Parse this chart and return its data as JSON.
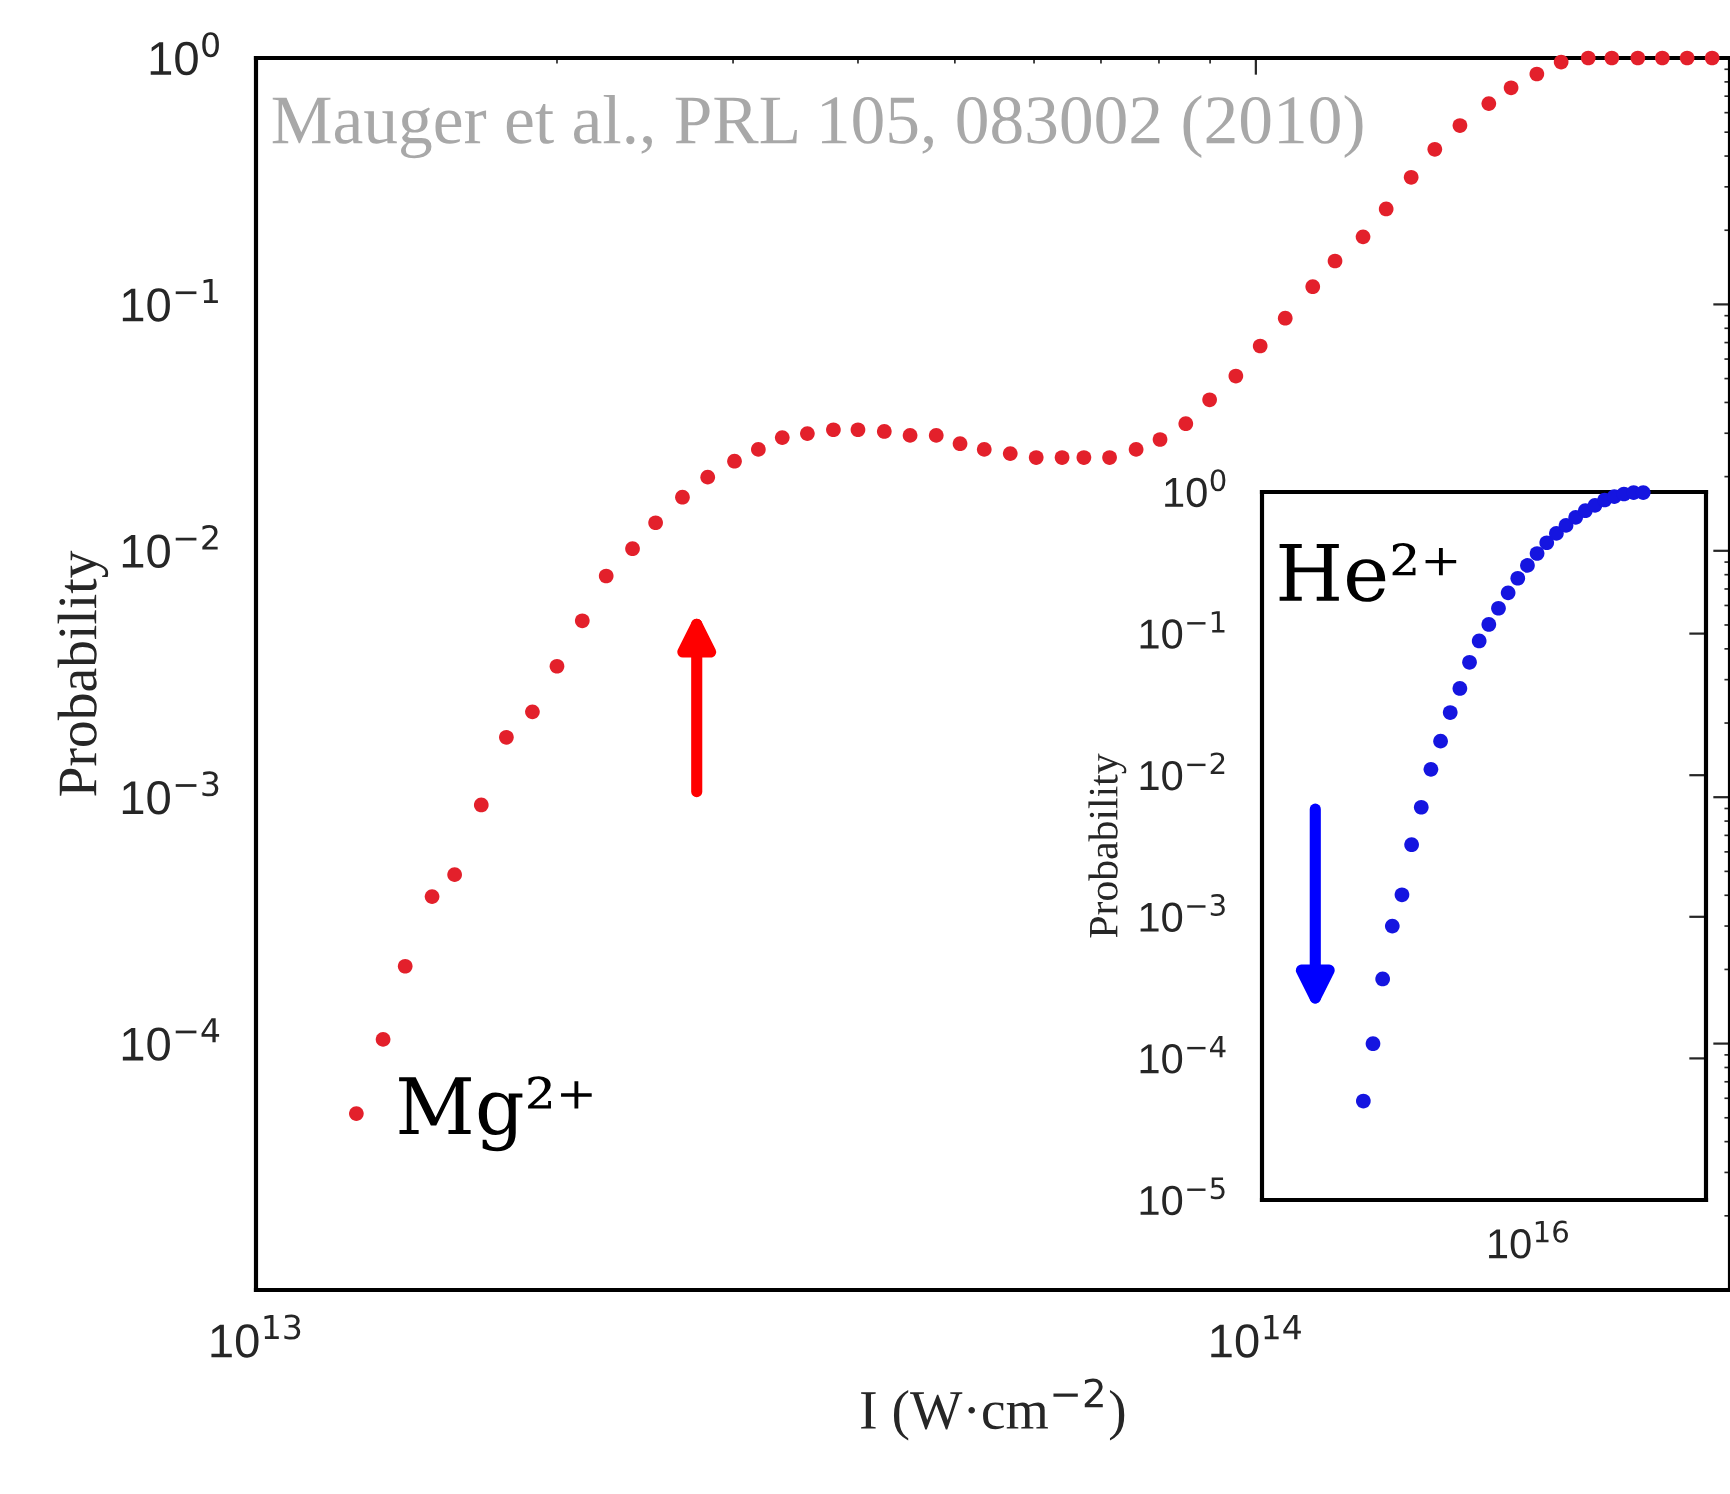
{
  "chart_data": [
    {
      "type": "scatter",
      "xlabel": "I (W·cm$^{−2}$)",
      "ylabel": "Probability",
      "log": "xy",
      "grid": false,
      "marker": "circle",
      "xlim": [
        10000000000000.0,
        298000000000000.0
      ],
      "ylim": [
        1e-05,
        1
      ],
      "xticks": [
        {
          "value": 10000000000000.0,
          "label": "10$^{13}$"
        },
        {
          "value": 100000000000000.0,
          "label": "10$^{14}$"
        }
      ],
      "yticks": [
        {
          "value": 0.0001,
          "label": "10$^{−4}$"
        },
        {
          "value": 0.001,
          "label": "10$^{−3}$"
        },
        {
          "value": 0.01,
          "label": "10$^{−2}$"
        },
        {
          "value": 0.1,
          "label": "10$^{−1}$"
        },
        {
          "value": 1,
          "label": "10$^{0}$"
        }
      ],
      "annotations": [
        "Mauger et al., PRL 105, 083002 (2010)"
      ],
      "series": [
        {
          "name": "Mg²⁺",
          "color": "#e3202b",
          "x": [
            12600000000000.0,
            13400000000000.0,
            14100000000000.0,
            15000000000000.0,
            15800000000000.0,
            16800000000000.0,
            17800000000000.0,
            18900000000000.0,
            20000000000000.0,
            21200000000000.0,
            22400000000000.0,
            23800000000000.0,
            25100000000000.0,
            26700000000000.0,
            28300000000000.0,
            30100000000000.0,
            31800000000000.0,
            33600000000000.0,
            35600000000000.0,
            37800000000000.0,
            40000000000000.0,
            42500000000000.0,
            45100000000000.0,
            47900000000000.0,
            50600000000000.0,
            53500000000000.0,
            56800000000000.0,
            60300000000000.0,
            64000000000000.0,
            67300000000000.0,
            71400000000000.0,
            75900000000000.0,
            80200000000000.0,
            85100000000000.0,
            89900000000000.0,
            95500000000000.0,
            101000000000000.0,
            107000000000000.0,
            114000000000000.0,
            120000000000000.0,
            128000000000000.0,
            135000000000000.0,
            143000000000000.0,
            151000000000000.0,
            160000000000000.0,
            171000000000000.0,
            180000000000000.0,
            191000000000000.0,
            202000000000000.0,
            215000000000000.0,
            227000000000000.0,
            241000000000000.0,
            255000000000000.0,
            270000000000000.0,
            286000000000000.0
          ],
          "values": [
            5.2e-05,
            0.000104,
            0.000206,
            0.000395,
            0.000485,
            0.00093,
            0.00175,
            0.00222,
            0.0034,
            0.0052,
            0.0079,
            0.0102,
            0.013,
            0.0165,
            0.0199,
            0.0231,
            0.0258,
            0.0288,
            0.0299,
            0.031,
            0.031,
            0.0305,
            0.0294,
            0.0294,
            0.0272,
            0.0258,
            0.0248,
            0.0239,
            0.0239,
            0.0239,
            0.0239,
            0.0258,
            0.0283,
            0.0328,
            0.041,
            0.0512,
            0.0678,
            0.0879,
            0.118,
            0.15,
            0.188,
            0.244,
            0.328,
            0.426,
            0.532,
            0.653,
            0.757,
            0.861,
            0.963,
            1,
            1,
            1,
            1,
            1,
            1
          ]
        }
      ]
    },
    {
      "type": "scatter",
      "ylabel": "Probability",
      "log": "y",
      "grid": false,
      "marker": "circle",
      "tick_labels": "y",
      "annotations": [
        "10$^{16}$"
      ],
      "categories": [
        null,
        null,
        null,
        null,
        null,
        null,
        null,
        null,
        null,
        null,
        null,
        null,
        null,
        null,
        null,
        null,
        null,
        null,
        null,
        null,
        null,
        null,
        null,
        null,
        null,
        null,
        null,
        null,
        null,
        null,
        null,
        null,
        null,
        null,
        null,
        null,
        null,
        null,
        null,
        null,
        null,
        null,
        null,
        null,
        null,
        null
      ],
      "ylim": [
        1e-05,
        1
      ],
      "yticks": [
        {
          "value": 1e-05,
          "label": "10$^{−5}$"
        },
        {
          "value": 0.0001,
          "label": "10$^{−4}$"
        },
        {
          "value": 0.001,
          "label": "10$^{−3}$"
        },
        {
          "value": 0.01,
          "label": "10$^{−2}$"
        },
        {
          "value": 0.1,
          "label": "10$^{−1}$"
        },
        {
          "value": 1,
          "label": "10$^{0}$"
        }
      ],
      "series": [
        {
          "name": "He²⁺",
          "color": "#1515e0",
          "values": [
            null,
            null,
            null,
            null,
            null,
            null,
            null,
            null,
            null,
            null,
            5e-05,
            0.000127,
            0.000364,
            0.00086,
            0.00143,
            0.00323,
            0.00594,
            0.011,
            0.0174,
            0.0277,
            0.041,
            0.0627,
            0.0887,
            0.116,
            0.151,
            0.194,
            0.246,
            0.303,
            0.368,
            0.438,
            0.51,
            0.581,
            0.662,
            0.738,
            0.805,
            0.878,
            0.927,
            0.968,
            0.99,
            0.99,
            null,
            null,
            null,
            null,
            null,
            null
          ]
        }
      ]
    }
  ]
}
